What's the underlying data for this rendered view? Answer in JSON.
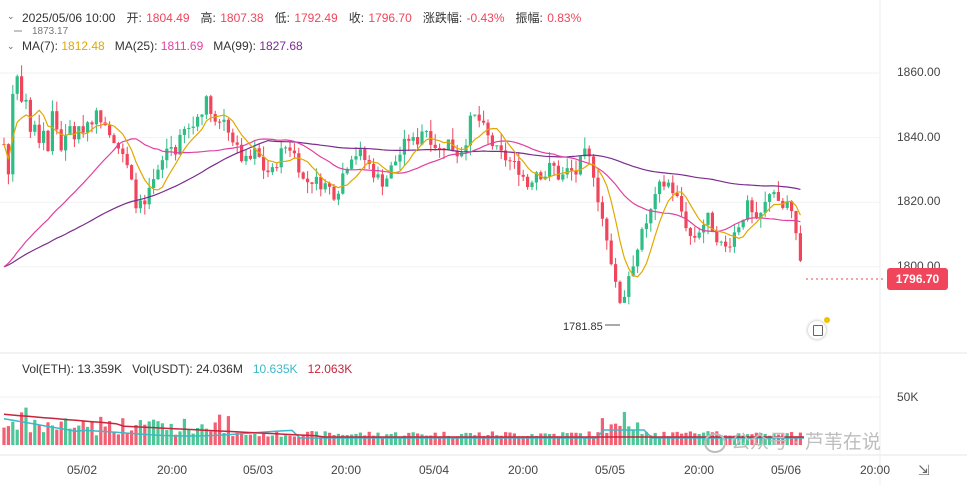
{
  "header": {
    "datetime": "2025/05/06 10:00",
    "open_label": "开:",
    "open": "1804.49",
    "high_label": "高:",
    "high": "1807.38",
    "low_label": "低:",
    "low": "1792.49",
    "close_label": "收:",
    "close": "1796.70",
    "change_label": "涨跌幅:",
    "change": "-0.43%",
    "amplitude_label": "振幅:",
    "amplitude": "0.83%"
  },
  "ma_legend": [
    {
      "label": "MA(7):",
      "value": "1812.48",
      "color": "#e0a800"
    },
    {
      "label": "MA(25):",
      "value": "1811.69",
      "color": "#e040a0"
    },
    {
      "label": "MA(99):",
      "value": "1827.68",
      "color": "#7b2c8f"
    }
  ],
  "vol_legend": [
    {
      "label": "Vol(ETH):",
      "value": "13.359K"
    },
    {
      "label": "Vol(USDT):",
      "value": "24.036M"
    },
    {
      "label": "",
      "value": "10.635K",
      "color": "#3cb8c8"
    },
    {
      "label": "",
      "value": "12.063K",
      "color": "#c8243c"
    }
  ],
  "current_price_tag": "1796.70",
  "max_annotation": "1873.17",
  "min_annotation": "1781.85",
  "watermark": "公众号 · 芦苇在说",
  "colors": {
    "up": "#2ebd85",
    "down": "#f0455a",
    "ma7": "#e0a800",
    "ma25": "#e040a0",
    "ma99": "#7b2c8f"
  },
  "chart_data": {
    "type": "candlestick",
    "price_axis_ticks": [
      "1860.00",
      "1840.00",
      "1820.00",
      "1800.00"
    ],
    "volume_axis_ticks": [
      "50K"
    ],
    "x_ticks": [
      "05/02",
      "20:00",
      "05/03",
      "20:00",
      "05/04",
      "20:00",
      "05/05",
      "20:00",
      "05/06",
      "20:00"
    ],
    "ylim": [
      1776,
      1880
    ]
  }
}
